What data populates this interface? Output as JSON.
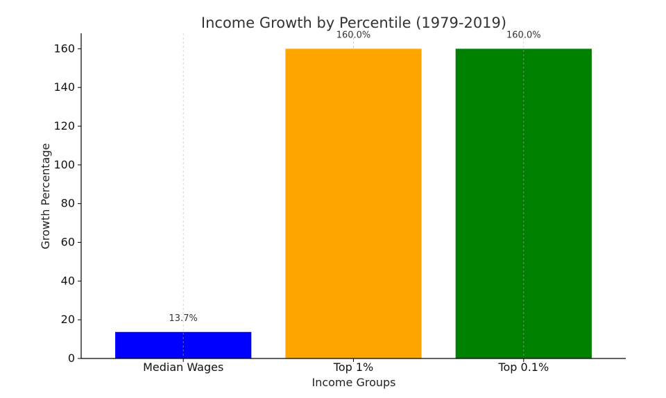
{
  "chart_data": {
    "type": "bar",
    "title": "Income Growth by Percentile (1979-2019)",
    "xlabel": "Income Groups",
    "ylabel": "Growth Percentage",
    "categories": [
      "Median Wages",
      "Top 1%",
      "Top 0.1%"
    ],
    "values": [
      13.7,
      160.0,
      160.0
    ],
    "data_labels": [
      "13.7%",
      "160.0%",
      "160.0%"
    ],
    "colors": [
      "#0000ff",
      "#ffa500",
      "#008000"
    ],
    "ylim": [
      0,
      168
    ],
    "yticks": [
      0,
      20,
      40,
      60,
      80,
      100,
      120,
      140,
      160
    ],
    "grid": "vertical-dashed",
    "legend": "none"
  }
}
